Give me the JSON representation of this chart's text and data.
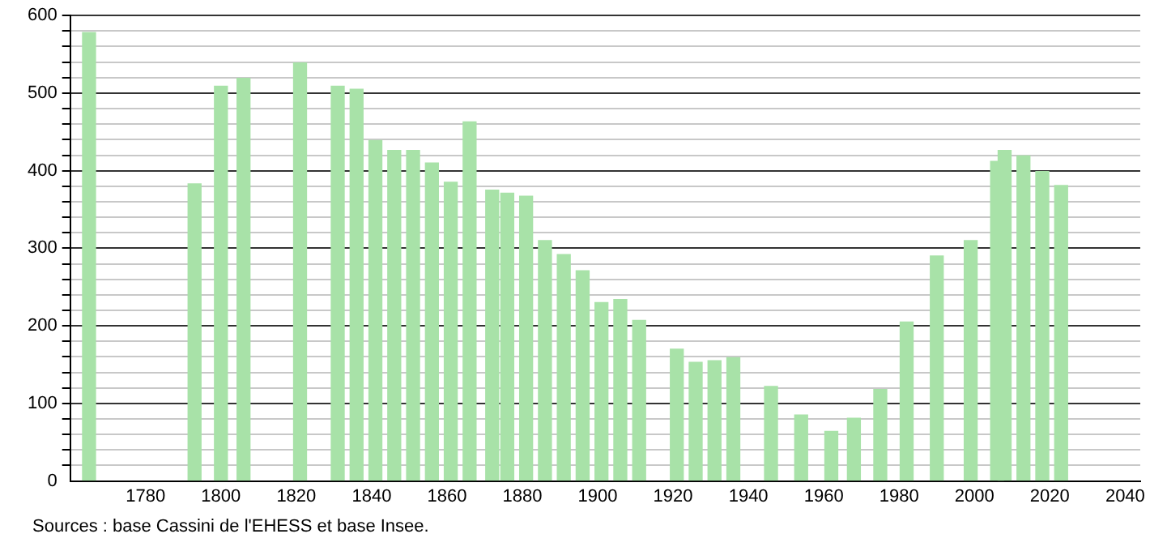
{
  "chart_data": {
    "type": "bar",
    "x": [
      1765,
      1793,
      1800,
      1806,
      1821,
      1831,
      1836,
      1841,
      1846,
      1851,
      1856,
      1861,
      1866,
      1872,
      1876,
      1881,
      1886,
      1891,
      1896,
      1901,
      1906,
      1911,
      1921,
      1926,
      1931,
      1936,
      1946,
      1954,
      1962,
      1968,
      1975,
      1982,
      1990,
      1999,
      2006,
      2008,
      2013,
      2018,
      2023
    ],
    "values": [
      578,
      383,
      509,
      519,
      539,
      509,
      505,
      439,
      426,
      426,
      410,
      385,
      463,
      375,
      371,
      367,
      310,
      292,
      271,
      230,
      234,
      207,
      170,
      153,
      155,
      159,
      122,
      85,
      64,
      81,
      118,
      205,
      290,
      310,
      412,
      426,
      419,
      399,
      381
    ],
    "color": "#a8e2a8",
    "xlim": [
      1760,
      2044
    ],
    "xticks": [
      1780,
      1800,
      1820,
      1840,
      1860,
      1880,
      1900,
      1920,
      1940,
      1960,
      1980,
      2000,
      2020,
      2040
    ],
    "ylim": [
      0,
      600
    ],
    "yticks": [
      0,
      {
        "value": 20,
        "label": null
      },
      {
        "value": 40,
        "label": null
      },
      {
        "value": 60,
        "label": null
      },
      {
        "value": 80,
        "label": null
      },
      100,
      {
        "value": 120,
        "label": null
      },
      {
        "value": 140,
        "label": null
      },
      {
        "value": 160,
        "label": null
      },
      {
        "value": 180,
        "label": null
      },
      200,
      {
        "value": 220,
        "label": null
      },
      {
        "value": 240,
        "label": null
      },
      {
        "value": 260,
        "label": null
      },
      {
        "value": 280,
        "label": null
      },
      300,
      {
        "value": 320,
        "label": null
      },
      {
        "value": 340,
        "label": null
      },
      {
        "value": 360,
        "label": null
      },
      {
        "value": 380,
        "label": null
      },
      400,
      {
        "value": 420,
        "label": null
      },
      {
        "value": 440,
        "label": null
      },
      {
        "value": 460,
        "label": null
      },
      {
        "value": 480,
        "label": null
      },
      500,
      {
        "value": 520,
        "label": null
      },
      {
        "value": 540,
        "label": null
      },
      {
        "value": 560,
        "label": null
      },
      {
        "value": 580,
        "label": null
      },
      600
    ],
    "grid": "y",
    "legend": false,
    "annotations": [
      "Sources : base Cassini de l'EHESS et base Insee."
    ]
  }
}
